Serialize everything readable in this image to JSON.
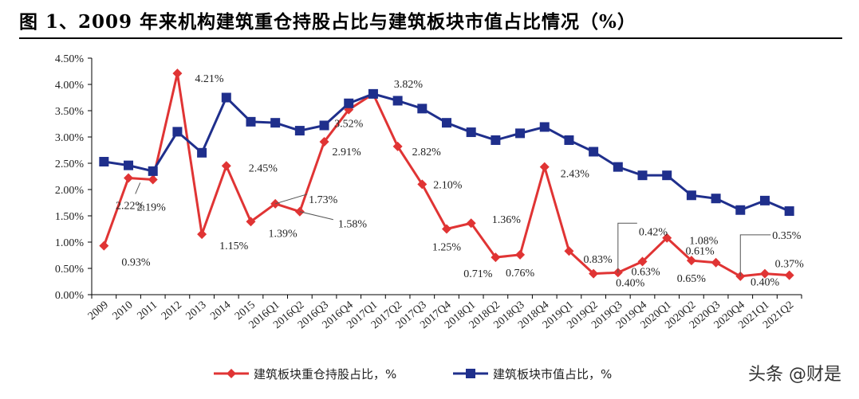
{
  "chart_data": {
    "type": "line",
    "title": "图 1、2009 年来机构建筑重仓持股占比与建筑板块市值占比情况（%）",
    "categories": [
      "2009",
      "2010",
      "2011",
      "2012",
      "2013",
      "2014",
      "2015",
      "2016Q1",
      "2016Q2",
      "2016Q3",
      "2016Q4",
      "2017Q1",
      "2017Q2",
      "2017Q3",
      "2017Q4",
      "2018Q1",
      "2018Q2",
      "2018Q3",
      "2018Q4",
      "2019Q1",
      "2019Q2",
      "2019Q3",
      "2019Q4",
      "2020Q1",
      "2020Q2",
      "2020Q3",
      "2020Q4",
      "2021Q1",
      "2021Q2"
    ],
    "ylim": [
      0,
      4.5
    ],
    "yticks": [
      "0.00%",
      "0.50%",
      "1.00%",
      "1.50%",
      "2.00%",
      "2.50%",
      "3.00%",
      "3.50%",
      "4.00%",
      "4.50%"
    ],
    "grid": false,
    "legend": "bottom",
    "series": [
      {
        "name": "建筑板块重仓持股占比，%",
        "color": "#E03434",
        "marker": "diamond",
        "values": [
          0.93,
          2.22,
          2.19,
          4.21,
          1.15,
          2.45,
          1.39,
          1.73,
          1.58,
          2.91,
          3.52,
          3.82,
          2.82,
          2.1,
          1.25,
          1.36,
          0.71,
          0.76,
          2.43,
          0.83,
          0.4,
          0.42,
          0.63,
          1.08,
          0.65,
          0.61,
          0.35,
          0.4,
          0.37
        ],
        "labels": [
          "0.93%",
          "2.22%",
          "2.19%",
          "4.21%",
          "1.15%",
          "2.45%",
          "1.39%",
          "1.73%",
          "1.58%",
          "2.91%",
          "3.52%",
          "3.82%",
          "2.82%",
          "2.10%",
          "1.25%",
          "1.36%",
          "0.71%",
          "0.76%",
          "2.43%",
          "0.83%",
          "0.40%",
          "0.42%",
          "0.63%",
          "1.08%",
          "0.65%",
          "0.61%",
          "0.35%",
          "0.40%",
          "0.37%"
        ]
      },
      {
        "name": "建筑板块市值占比，%",
        "color": "#1F2F8C",
        "marker": "square",
        "values": [
          2.53,
          2.46,
          2.35,
          3.1,
          2.7,
          3.75,
          3.29,
          3.27,
          3.12,
          3.22,
          3.64,
          3.82,
          3.69,
          3.54,
          3.27,
          3.09,
          2.94,
          3.07,
          3.19,
          2.94,
          2.72,
          2.43,
          2.27,
          2.27,
          1.89,
          1.83,
          1.61,
          1.79,
          1.59
        ]
      }
    ]
  },
  "watermark": "头条 @财是"
}
